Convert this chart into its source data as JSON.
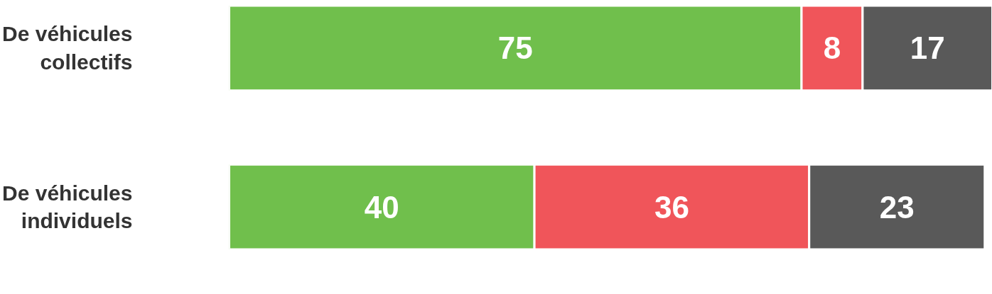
{
  "chart_data": {
    "type": "bar",
    "orientation": "horizontal",
    "stacked": true,
    "data_labels": true,
    "grid": false,
    "categories": [
      "De véhicules collectifs",
      "De véhicules individuels"
    ],
    "series": [
      {
        "color": "#70bf4c",
        "values": [
          75,
          40
        ]
      },
      {
        "color": "#f0555a",
        "values": [
          8,
          36
        ]
      },
      {
        "color": "#595959",
        "values": [
          17,
          23
        ]
      }
    ]
  }
}
